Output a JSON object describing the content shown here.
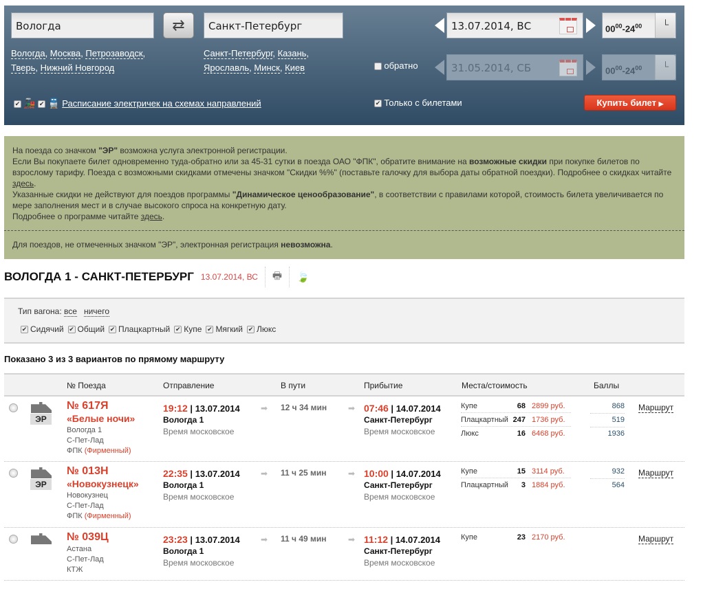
{
  "search": {
    "from": "Вологда",
    "to": "Санкт-Петербург",
    "from_suggestions": [
      "Вологда",
      "Москва",
      "Петрозаводск",
      "Тверь",
      "Нижний Новгород"
    ],
    "to_suggestions": [
      "Санкт-Петербург",
      "Казань",
      "Ярославль",
      "Минск",
      "Киев"
    ],
    "date": "13.07.2014, ВС",
    "return_date": "31.05.2014, СБ",
    "time_from": "00",
    "time_from_min": "00",
    "time_to": "24",
    "time_to_min": "00",
    "return_label": "обратно",
    "return_checked": false,
    "schedule_link": "Расписание электричек на схемах направлений",
    "only_tickets": "Только с билетами",
    "buy": "Купить билет"
  },
  "info": {
    "l1a": "На поезда со значком ",
    "l1b": "\"ЭР\"",
    "l1c": " возможна услуга электронной регистрации.",
    "l2a": "Если Вы покупаете билет одновременно туда-обратно или за 45-31 сутки в поезда ОАО \"ФПК\", обратите внимание на ",
    "l2b": "возможные скидки",
    "l2c": " при покупке билетов по взрослому тарифу. Поезда с возможными скидками отмечены значком \"Скидки %%\" (поставьте галочку для выбора даты обратной поездки). Подробнее о скидках читайте ",
    "l2d": "здесь",
    "l2e": ".",
    "l3a": "Указанные скидки не действуют для поездов программы ",
    "l3b": "\"Динамическое ценообразование\"",
    "l3c": ", в соответствии с правилами которой, стоимость билета увеличивается по мере заполнения мест и в случае высокого спроса на конкретную дату.",
    "l4a": "Подробнее о программе читайте ",
    "l4b": "здесь",
    "l4c": ".",
    "l5a": "Для поездов, не отмеченных значком \"ЭР\", электронная регистрация ",
    "l5b": "невозможна",
    "l5c": "."
  },
  "route": {
    "title": "ВОЛОГДА 1 - САНКТ-ПЕТЕРБУРГ",
    "date": "13.07.2014, ВС"
  },
  "filter": {
    "label": "Тип вагона:",
    "all": "все",
    "none": "ничего",
    "types": [
      "Сидячий",
      "Общий",
      "Плацкартный",
      "Купе",
      "Мягкий",
      "Люкс"
    ]
  },
  "shown": "Показано 3 из 3 вариантов по прямому маршруту",
  "columns": [
    "№ Поезда",
    "Отправление",
    "В пути",
    "Прибытие",
    "Места/стоимость",
    "Баллы"
  ],
  "colors": {
    "accent": "#d9402b",
    "header_top": "#687f93",
    "header_bottom": "#2f4b64",
    "info_bg": "#b1b98f"
  },
  "trains": [
    {
      "num": "№ 617Я",
      "name": "«Белые ночи»",
      "er": "ЭР",
      "from": "Вологда 1",
      "to": "С-Пет-Лад",
      "carrier": "ФПК",
      "brand": "(Фирменный)",
      "dep_time": "19:12",
      "dep_date": "13.07.2014",
      "dep_station": "Вологда 1",
      "tz": "Время московское",
      "duration": "12 ч 34 мин",
      "arr_time": "07:46",
      "arr_date": "14.07.2014",
      "arr_station": "Санкт-Петербург",
      "arr_tz": "Время московское",
      "seats": [
        {
          "cls": "Купе",
          "n": "68",
          "price": "2899 руб.",
          "pts": "868"
        },
        {
          "cls": "Плацкартный",
          "n": "247",
          "price": "1736 руб.",
          "pts": "519"
        },
        {
          "cls": "Люкс",
          "n": "16",
          "price": "6468 руб.",
          "pts": "1936"
        }
      ],
      "route": "Маршрут"
    },
    {
      "num": "№ 013Н",
      "name": "«Новокузнецк»",
      "er": "ЭР",
      "from": "Новокузнец",
      "to": "С-Пет-Лад",
      "carrier": "ФПК",
      "brand": "(Фирменный)",
      "dep_time": "22:35",
      "dep_date": "13.07.2014",
      "dep_station": "Вологда 1",
      "tz": "Время московское",
      "duration": "11 ч 25 мин",
      "arr_time": "10:00",
      "arr_date": "14.07.2014",
      "arr_station": "Санкт-Петербург",
      "arr_tz": "Время московское",
      "seats": [
        {
          "cls": "Купе",
          "n": "15",
          "price": "3114 руб.",
          "pts": "932"
        },
        {
          "cls": "Плацкартный",
          "n": "3",
          "price": "1884 руб.",
          "pts": "564"
        }
      ],
      "route": "Маршрут"
    },
    {
      "num": "№ 039Ц",
      "from": "Астана",
      "to": "С-Пет-Лад",
      "carrier": "КТЖ",
      "dep_time": "23:23",
      "dep_date": "13.07.2014",
      "dep_station": "Вологда 1",
      "tz": "Время московское",
      "duration": "11 ч 49 мин",
      "arr_time": "11:12",
      "arr_date": "14.07.2014",
      "arr_station": "Санкт-Петербург",
      "arr_tz": "Время московское",
      "seats": [
        {
          "cls": "Купе",
          "n": "23",
          "price": "2170 руб."
        }
      ],
      "route": "Маршрут"
    }
  ]
}
